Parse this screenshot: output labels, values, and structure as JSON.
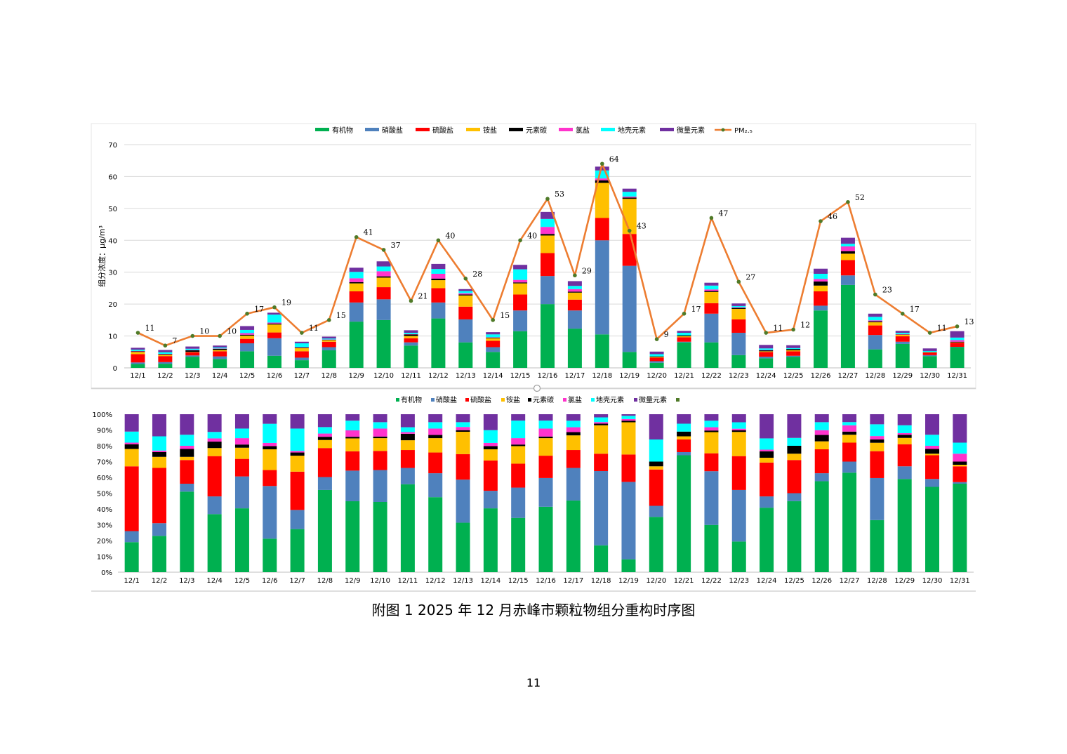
{
  "colors": {
    "organic": "#00B050",
    "nitrate": "#4F81BD",
    "sulfate": "#FF0000",
    "ammonium": "#FFC000",
    "ec": "#000000",
    "chloride": "#FF33CC",
    "crustal": "#00FFFF",
    "trace": "#7030A0",
    "pm": "#ED7D31",
    "pm_marker": "#4F7A28",
    "grid": "#D9D9D9",
    "axis": "#BFBFBF"
  },
  "chart_data": [
    {
      "type": "bar",
      "stacked": true,
      "title": "",
      "ylabel": "组分浓度：μg/m³",
      "ylim": [
        0,
        70
      ],
      "yticks": [
        "0",
        "10",
        "20",
        "30",
        "40",
        "50",
        "60",
        "70"
      ],
      "categories": [
        "12/1",
        "12/2",
        "12/3",
        "12/4",
        "12/5",
        "12/6",
        "12/7",
        "12/8",
        "12/9",
        "12/10",
        "12/11",
        "12/12",
        "12/13",
        "12/14",
        "12/15",
        "12/16",
        "12/17",
        "12/18",
        "12/19",
        "12/20",
        "12/21",
        "12/22",
        "12/23",
        "12/24",
        "12/25",
        "12/26",
        "12/27",
        "12/28",
        "12/29",
        "12/30",
        "12/31"
      ],
      "legend": [
        "有机物",
        "硝酸盐",
        "硫酸盐",
        "铵盐",
        "元素碳",
        "氯盐",
        "地壳元素",
        "微量元素",
        "PM₂.₅"
      ],
      "series": [
        {
          "name": "有机物",
          "color_key": "organic",
          "values": [
            1.2,
            1.3,
            3.5,
            2.8,
            5.2,
            3.8,
            2.4,
            5.5,
            14.5,
            15.0,
            7.0,
            15.5,
            8.0,
            5.0,
            11.5,
            20.0,
            12.3,
            10.5,
            5.0,
            1.6,
            8.0,
            8.0,
            4.0,
            3.0,
            3.5,
            18.0,
            26.0,
            5.8,
            7.5,
            3.7,
            6.5
          ]
        },
        {
          "name": "硝酸盐",
          "color_key": "nitrate",
          "values": [
            0.5,
            0.5,
            0.4,
            0.8,
            2.5,
            5.5,
            0.8,
            1.0,
            6.0,
            6.5,
            1.0,
            5.0,
            7.2,
            1.5,
            6.5,
            8.8,
            5.7,
            29.5,
            27.0,
            0.5,
            0.2,
            9.0,
            7.0,
            0.5,
            0.3,
            1.5,
            3.0,
            4.5,
            0.7,
            0.3,
            0.1
          ]
        },
        {
          "name": "硫酸盐",
          "color_key": "sulfate",
          "values": [
            2.6,
            1.9,
            1.0,
            1.6,
            1.4,
            1.8,
            2.0,
            1.7,
            3.5,
            3.8,
            1.3,
            4.5,
            4.0,
            2.0,
            5.0,
            7.2,
            3.4,
            7.0,
            10.0,
            1.1,
            1.4,
            3.3,
            4.2,
            1.5,
            1.4,
            4.5,
            4.8,
            3.0,
            1.7,
            0.8,
            1.3
          ]
        },
        {
          "name": "铵盐",
          "color_key": "ammonium",
          "values": [
            0.7,
            0.4,
            0.1,
            0.4,
            1.0,
            2.5,
            1.0,
            0.5,
            2.5,
            3.0,
            0.7,
            2.5,
            3.5,
            0.8,
            3.5,
            5.5,
            2.2,
            11.0,
            11.0,
            0.2,
            0.3,
            3.5,
            3.3,
            0.2,
            0.3,
            1.8,
            2.0,
            1.0,
            0.5,
            0.1,
            0.1
          ]
        },
        {
          "name": "元素碳",
          "color_key": "ec",
          "values": [
            0.2,
            0.2,
            0.5,
            0.4,
            0.3,
            0.3,
            0.2,
            0.1,
            0.4,
            0.4,
            0.5,
            0.5,
            0.3,
            0.2,
            0.3,
            0.5,
            0.3,
            0.8,
            0.4,
            0.2,
            0.3,
            0.3,
            0.3,
            0.3,
            0.4,
            1.3,
            0.8,
            0.3,
            0.1,
            0.1,
            0.2
          ]
        },
        {
          "name": "氯盐",
          "color_key": "chloride",
          "values": [
            0.1,
            0.1,
            0.1,
            0.1,
            0.5,
            0.3,
            0.1,
            0.1,
            1.2,
            1.6,
            0.1,
            1.5,
            0.4,
            0.1,
            0.8,
            2.2,
            0.8,
            0.6,
            0.3,
            0.0,
            0.0,
            0.5,
            0.2,
            0.1,
            0.0,
            0.8,
            1.5,
            0.3,
            0.1,
            0.0,
            0.5
          ]
        },
        {
          "name": "地壳元素",
          "color_key": "crustal",
          "values": [
            0.4,
            0.5,
            0.4,
            0.3,
            1.0,
            2.5,
            1.2,
            0.3,
            2.0,
            1.5,
            0.4,
            1.5,
            0.7,
            0.9,
            3.3,
            2.5,
            1.0,
            2.5,
            1.5,
            0.7,
            0.8,
            1.2,
            0.4,
            0.5,
            0.3,
            1.6,
            0.8,
            1.1,
            0.4,
            0.3,
            0.8
          ]
        },
        {
          "name": "微量元素",
          "color_key": "trace",
          "values": [
            0.6,
            0.7,
            0.7,
            0.6,
            1.2,
            0.6,
            0.5,
            0.6,
            1.3,
            1.6,
            0.8,
            1.6,
            0.6,
            0.7,
            1.4,
            2.2,
            1.5,
            1.2,
            1.0,
            0.8,
            0.6,
            0.9,
            0.8,
            1.1,
            0.9,
            1.6,
            1.9,
            1.0,
            0.6,
            0.8,
            2.0
          ]
        }
      ],
      "line": {
        "name": "PM₂.₅",
        "values": [
          11,
          7,
          10,
          10,
          17,
          19,
          11,
          15,
          41,
          37,
          21,
          40,
          28,
          15,
          40,
          53,
          29,
          64,
          43,
          9,
          17,
          47,
          27,
          11,
          12,
          46,
          52,
          23,
          17,
          11,
          13
        ]
      }
    },
    {
      "type": "bar",
      "stacked": true,
      "percent": true,
      "ylim": [
        0,
        100
      ],
      "yticks": [
        "0%",
        "10%",
        "20%",
        "30%",
        "40%",
        "50%",
        "60%",
        "70%",
        "80%",
        "90%",
        "100%"
      ],
      "categories": [
        "12/1",
        "12/2",
        "12/3",
        "12/4",
        "12/5",
        "12/6",
        "12/7",
        "12/8",
        "12/9",
        "12/10",
        "12/11",
        "12/12",
        "12/13",
        "12/14",
        "12/15",
        "12/16",
        "12/17",
        "12/18",
        "12/19",
        "12/20",
        "12/21",
        "12/22",
        "12/23",
        "12/24",
        "12/25",
        "12/26",
        "12/27",
        "12/28",
        "12/29",
        "12/30",
        "12/31"
      ],
      "legend": [
        "有机物",
        "硝酸盐",
        "硫酸盐",
        "铵盐",
        "元素碳",
        "氯盐",
        "地壳元素",
        "微量元素",
        ""
      ],
      "series": [
        {
          "name": "有机物",
          "color_key": "organic",
          "values": [
            19,
            23,
            51,
            36,
            40,
            21,
            27,
            51,
            44,
            44,
            54,
            47,
            31,
            40,
            34,
            41,
            44,
            17,
            8,
            35,
            74,
            29,
            19,
            40,
            45,
            57,
            63,
            31,
            59,
            54,
            56
          ]
        },
        {
          "name": "硝酸盐",
          "color_key": "nitrate",
          "values": [
            7,
            8,
            5,
            11,
            20,
            33,
            12,
            8,
            19,
            20,
            10,
            15,
            27,
            11,
            19,
            18,
            20,
            47,
            48,
            7,
            2,
            33,
            32,
            7,
            5,
            5,
            7,
            25,
            8,
            5,
            1
          ]
        },
        {
          "name": "硫酸盐",
          "color_key": "sulfate",
          "values": [
            41,
            35,
            15,
            25,
            11,
            10,
            24,
            18,
            12,
            12,
            11,
            13,
            16,
            19,
            15,
            14,
            11,
            11,
            17,
            23,
            8,
            11,
            21,
            21,
            21,
            15,
            12,
            16,
            14,
            15,
            10
          ]
        },
        {
          "name": "铵盐",
          "color_key": "ammonium",
          "values": [
            11,
            7,
            2,
            5,
            7,
            13,
            10,
            5,
            8,
            8,
            6,
            9,
            14,
            7,
            11,
            11,
            9,
            18,
            20,
            2,
            2,
            13,
            15,
            3,
            4,
            5,
            5,
            5,
            4,
            1,
            1
          ]
        },
        {
          "name": "元素碳",
          "color_key": "ec",
          "values": [
            3,
            3,
            5,
            4,
            2,
            2,
            2,
            2,
            1,
            1,
            4,
            2,
            1,
            2,
            1,
            1,
            2,
            1,
            1,
            3,
            3,
            1,
            1,
            4,
            5,
            4,
            2,
            2,
            2,
            3,
            2
          ]
        },
        {
          "name": "氯盐",
          "color_key": "chloride",
          "values": [
            1,
            1,
            2,
            2,
            4,
            2,
            1,
            2,
            4,
            5,
            1,
            4,
            2,
            2,
            4,
            5,
            3,
            1,
            1,
            0,
            0,
            2,
            1,
            1,
            0,
            3,
            4,
            2,
            1,
            2,
            5
          ]
        },
        {
          "name": "地壳元素",
          "color_key": "crustal",
          "values": [
            7,
            9,
            7,
            4,
            6,
            12,
            14,
            4,
            6,
            4,
            3,
            4,
            3,
            8,
            11,
            5,
            4,
            3,
            2,
            14,
            5,
            4,
            4,
            7,
            5,
            5,
            2,
            7,
            5,
            7,
            7
          ]
        },
        {
          "name": "微量元素",
          "color_key": "trace",
          "values": [
            11,
            14,
            13,
            11,
            9,
            6,
            9,
            8,
            4,
            5,
            8,
            5,
            5,
            10,
            4,
            4,
            4,
            2,
            1,
            16,
            6,
            4,
            5,
            15,
            15,
            5,
            5,
            6,
            7,
            13,
            18
          ]
        }
      ]
    }
  ],
  "caption": "附图 1   2025 年 12 月赤峰市颗粒物组分重构时序图",
  "page_number": "11"
}
